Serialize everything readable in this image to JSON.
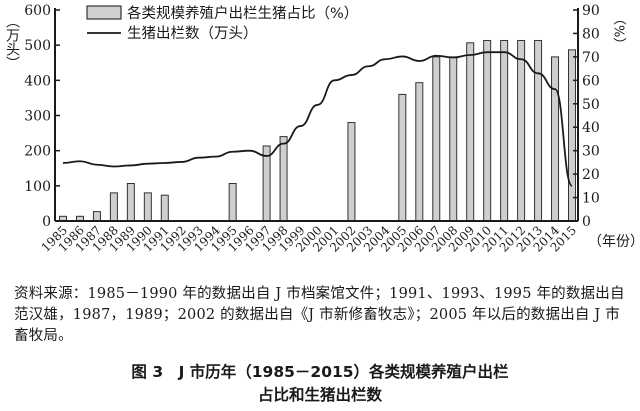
{
  "chart_data": {
    "type": "bar+line",
    "title": "图3 J市历年(1985-2015)各类规模养殖户出栏占比和生猪出栏数",
    "categories": [
      "1985",
      "1986",
      "1987",
      "1988",
      "1989",
      "1990",
      "1991",
      "1992",
      "1993",
      "1994",
      "1995",
      "1996",
      "1997",
      "1998",
      "1999",
      "2000",
      "2001",
      "2002",
      "2003",
      "2004",
      "2005",
      "2006",
      "2007",
      "2008",
      "2009",
      "2010",
      "2011",
      "2012",
      "2013",
      "2014",
      "2015"
    ],
    "series": [
      {
        "name": "各类规模养殖户出栏生猪占比（%）",
        "type": "bar",
        "axis": "right",
        "values": [
          2,
          2,
          4,
          12,
          16,
          12,
          11,
          null,
          null,
          null,
          16,
          null,
          32,
          36,
          null,
          null,
          null,
          42,
          null,
          null,
          54,
          59,
          70,
          70,
          76,
          77,
          77,
          77,
          77,
          70,
          73
        ]
      },
      {
        "name": "生猪出栏数（万头）",
        "type": "line",
        "axis": "left",
        "values": [
          165,
          170,
          160,
          155,
          158,
          163,
          165,
          168,
          180,
          183,
          197,
          200,
          185,
          220,
          270,
          330,
          400,
          415,
          440,
          460,
          468,
          455,
          470,
          465,
          472,
          480,
          480,
          460,
          420,
          375,
          100
        ]
      }
    ],
    "xlabel": "（年份）",
    "ylabel_left": "（万头）",
    "ylabel_right": "（%）",
    "ylim_left": [
      0,
      600
    ],
    "yticks_left": [
      0,
      100,
      200,
      300,
      400,
      500,
      600
    ],
    "ylim_right": [
      0,
      90
    ],
    "yticks_right": [
      0,
      10,
      20,
      30,
      40,
      50,
      60,
      70,
      80,
      90
    ],
    "legend_position": "top-center",
    "grid": false
  },
  "legend": {
    "bar_label": "各类规模养殖户出栏生猪占比（%）",
    "line_label": "生猪出栏数（万头）"
  },
  "axes": {
    "left_unit": "（万头）",
    "right_unit": "（%）",
    "x_unit": "（年份）"
  },
  "source_note": "资料来源：1985－1990 年的数据出自 J 市档案馆文件；1991、1993、1995 年的数据出自范汉雄，1987，1989；2002 的数据出自《J 市新修畜牧志》；2005 年以后的数据出自 J 市畜牧局。",
  "caption": {
    "line1": "图 3　J 市历年（1985－2015）各类规模养殖户出栏",
    "line2": "占比和生猪出栏数"
  },
  "colors": {
    "bar_fill": "#cfcfcf",
    "bar_stroke": "#333333",
    "line": "#1a1a1a",
    "axis": "#1a1a1a"
  }
}
